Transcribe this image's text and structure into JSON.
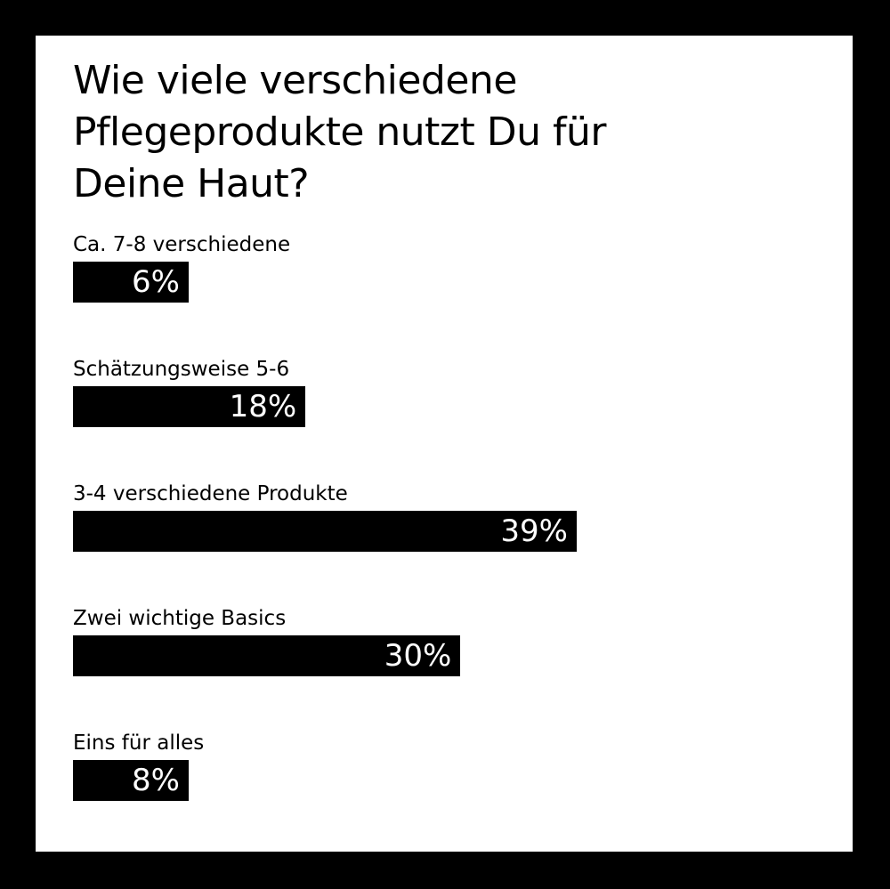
{
  "chart_data": {
    "type": "bar",
    "orientation": "horizontal",
    "title": "Wie viele verschiedene Pflegeprodukte nutzt Du für Deine Haut?",
    "categories": [
      "Ca. 7-8 verschiedene",
      "Schätzungsweise 5-6",
      "3-4 verschiedene Produkte",
      "Zwei wichtige Basics",
      "Eins für alles"
    ],
    "values": [
      6,
      18,
      39,
      30,
      8
    ],
    "value_labels": [
      "6%",
      "18%",
      "39%",
      "30%",
      "8%"
    ],
    "unit": "%",
    "grid": false,
    "colors": {
      "bar": "#000000",
      "value_text": "#ffffff",
      "background": "#ffffff",
      "frame": "#000000"
    }
  }
}
